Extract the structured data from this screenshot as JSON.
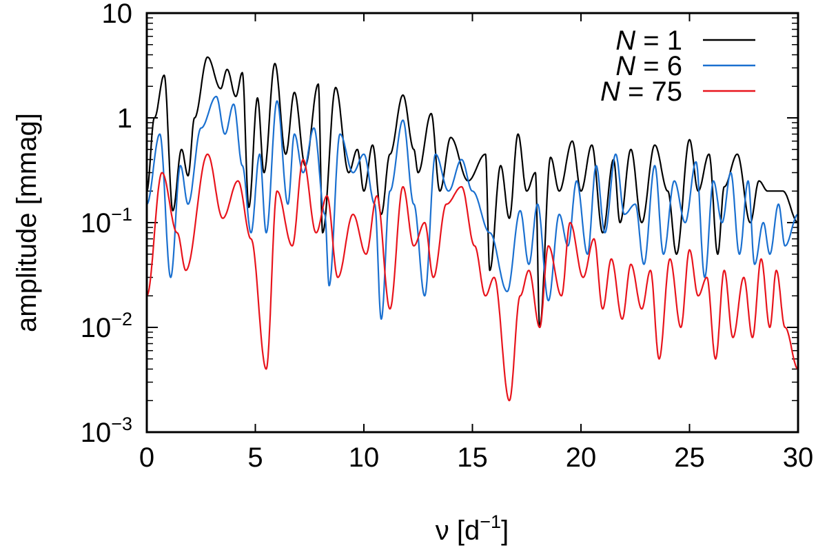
{
  "chart_data": {
    "type": "line",
    "title": "",
    "xlabel": "ν [d",
    "xlabel_sup": "−1",
    "xlabel_suffix": "]",
    "ylabel": "amplitude [mmag]",
    "xlim": [
      0,
      30
    ],
    "ylim": [
      0.001,
      10
    ],
    "yscale": "log",
    "x_ticks": [
      0,
      5,
      10,
      15,
      20,
      25,
      30
    ],
    "x_tick_labels": [
      "0",
      "5",
      "10",
      "15",
      "20",
      "25",
      "30"
    ],
    "y_ticks": [
      0.001,
      0.01,
      0.1,
      1,
      10
    ],
    "y_tick_labels": [
      {
        "base": "10",
        "exp": "−3"
      },
      {
        "base": "10",
        "exp": "−2"
      },
      {
        "base": "10",
        "exp": "−1"
      },
      {
        "base": "1",
        "exp": ""
      },
      {
        "base": "10",
        "exp": ""
      }
    ],
    "legend_position": "top-right",
    "series": [
      {
        "name": "N = 1",
        "legend_var": "N",
        "legend_rest": " = 1",
        "color": "#000000",
        "floor": 0.2,
        "x": [
          0.0,
          0.35,
          0.8,
          1.2,
          1.6,
          1.9,
          2.2,
          2.8,
          3.4,
          3.7,
          4.1,
          4.4,
          4.7,
          5.1,
          5.4,
          5.9,
          6.4,
          6.8,
          7.3,
          7.9,
          8.1,
          8.7,
          9.3,
          9.7,
          10.0,
          10.4,
          10.8,
          11.2,
          11.8,
          12.3,
          12.5,
          13.1,
          13.5,
          14.0,
          14.8,
          15.6,
          15.8,
          16.3,
          16.7,
          17.1,
          17.5,
          17.9,
          18.1,
          18.6,
          19.0,
          19.6,
          20.0,
          20.5,
          21.0,
          21.5,
          21.8,
          22.3,
          22.8,
          23.4,
          24.0,
          24.4,
          25.0,
          25.4,
          25.9,
          26.3,
          26.6,
          27.2,
          27.8,
          28.2,
          28.6,
          29.3,
          30.0
        ],
        "y": [
          0.2,
          1.0,
          2.55,
          0.13,
          0.5,
          0.28,
          1.0,
          3.8,
          1.9,
          2.9,
          1.6,
          2.7,
          0.14,
          1.55,
          0.3,
          3.3,
          0.45,
          1.75,
          0.35,
          2.1,
          0.08,
          1.95,
          0.3,
          0.5,
          0.2,
          0.55,
          0.12,
          0.45,
          1.65,
          0.5,
          0.3,
          1.1,
          0.2,
          0.65,
          0.25,
          0.45,
          0.035,
          0.35,
          0.11,
          0.7,
          0.2,
          0.3,
          0.01,
          0.42,
          0.2,
          0.6,
          0.2,
          0.55,
          0.08,
          0.4,
          0.1,
          0.5,
          0.1,
          0.55,
          0.2,
          0.05,
          0.62,
          0.2,
          0.45,
          0.05,
          0.22,
          0.45,
          0.1,
          0.25,
          0.2,
          0.2,
          0.1
        ]
      },
      {
        "name": "N = 6",
        "legend_var": "N",
        "legend_rest": " = 6",
        "color": "#1a70d0",
        "floor": 0.12,
        "x": [
          0.0,
          0.6,
          1.1,
          1.55,
          1.9,
          2.5,
          3.2,
          3.6,
          4.0,
          4.4,
          4.8,
          5.2,
          5.5,
          6.0,
          6.5,
          6.8,
          7.2,
          7.7,
          8.2,
          8.4,
          8.9,
          9.5,
          10.0,
          10.5,
          10.8,
          11.2,
          11.8,
          12.3,
          12.8,
          13.3,
          13.9,
          14.5,
          15.0,
          15.8,
          16.6,
          17.2,
          17.6,
          18.0,
          18.5,
          19.0,
          19.4,
          19.8,
          20.3,
          20.7,
          21.1,
          21.6,
          22.0,
          22.5,
          22.9,
          23.4,
          23.8,
          24.3,
          24.8,
          25.3,
          25.7,
          26.1,
          26.5,
          26.9,
          27.3,
          27.7,
          28.0,
          28.4,
          28.7,
          29.1,
          29.4,
          30.0
        ],
        "y": [
          0.15,
          0.7,
          0.03,
          0.35,
          0.15,
          0.8,
          1.6,
          0.7,
          1.35,
          0.35,
          0.08,
          0.45,
          0.08,
          1.45,
          0.15,
          0.7,
          0.3,
          0.8,
          0.12,
          0.025,
          0.7,
          0.3,
          0.45,
          0.15,
          0.012,
          0.2,
          0.95,
          0.15,
          0.02,
          0.45,
          0.2,
          0.4,
          0.2,
          0.08,
          0.022,
          0.13,
          0.04,
          0.15,
          0.018,
          0.12,
          0.06,
          0.25,
          0.05,
          0.35,
          0.08,
          0.45,
          0.12,
          0.15,
          0.04,
          0.35,
          0.05,
          0.25,
          0.1,
          0.38,
          0.03,
          0.25,
          0.1,
          0.3,
          0.05,
          0.25,
          0.04,
          0.1,
          0.05,
          0.15,
          0.06,
          0.12
        ]
      },
      {
        "name": "N = 75",
        "legend_var": "N",
        "legend_rest": " = 75",
        "color": "#e8141c",
        "floor": 0.045,
        "x": [
          0.0,
          0.7,
          1.4,
          1.8,
          2.8,
          3.5,
          4.2,
          4.8,
          5.5,
          6.0,
          6.7,
          7.2,
          7.8,
          8.3,
          8.8,
          9.5,
          10.1,
          10.6,
          11.2,
          11.8,
          12.3,
          12.8,
          13.2,
          13.8,
          14.5,
          15.1,
          15.6,
          16.0,
          16.7,
          17.2,
          17.6,
          18.1,
          18.5,
          19.1,
          19.5,
          20.1,
          20.6,
          21.0,
          21.4,
          21.9,
          22.3,
          22.8,
          23.2,
          23.6,
          24.1,
          24.6,
          25.0,
          25.4,
          25.8,
          26.2,
          26.6,
          27.0,
          27.5,
          27.9,
          28.3,
          28.7,
          29.0,
          29.4,
          30.0
        ],
        "y": [
          0.02,
          0.3,
          0.08,
          0.035,
          0.45,
          0.11,
          0.25,
          0.07,
          0.004,
          0.2,
          0.06,
          0.4,
          0.08,
          0.18,
          0.03,
          0.12,
          0.05,
          0.18,
          0.015,
          0.22,
          0.06,
          0.1,
          0.03,
          0.15,
          0.22,
          0.06,
          0.02,
          0.03,
          0.002,
          0.02,
          0.035,
          0.01,
          0.06,
          0.02,
          0.1,
          0.03,
          0.07,
          0.015,
          0.045,
          0.012,
          0.04,
          0.015,
          0.035,
          0.005,
          0.045,
          0.01,
          0.055,
          0.02,
          0.03,
          0.005,
          0.035,
          0.008,
          0.03,
          0.008,
          0.045,
          0.01,
          0.035,
          0.01,
          0.004
        ]
      }
    ]
  }
}
